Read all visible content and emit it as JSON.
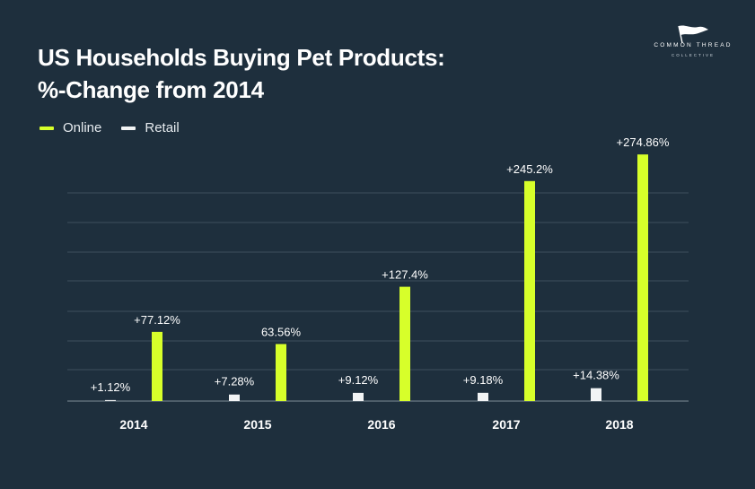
{
  "title_line1": "US Households Buying Pet Products:",
  "title_line2": "%-Change from 2014",
  "logo": {
    "line1": "COMMON THREAD",
    "line2": "COLLECTIVE",
    "icon": "flag-icon"
  },
  "colors": {
    "background": "#1e2f3d",
    "online": "#d7ff2a",
    "retail": "#f2f4f5",
    "grid": "#3d4f5d"
  },
  "legend": [
    {
      "label": "Online",
      "color": "#d7ff2a"
    },
    {
      "label": "Retail",
      "color": "#f2f4f5"
    }
  ],
  "chart_data": {
    "type": "bar",
    "categories": [
      "2014",
      "2015",
      "2016",
      "2017",
      "2018"
    ],
    "series": [
      {
        "name": "Online",
        "values": [
          77.12,
          63.56,
          127.4,
          245.2,
          274.86
        ],
        "labels": [
          "+77.12%",
          "63.56%",
          "+127.4%",
          "+245.2%",
          "+274.86%"
        ]
      },
      {
        "name": "Retail",
        "values": [
          1.12,
          7.28,
          9.12,
          9.18,
          14.38
        ],
        "labels": [
          "+1.12%",
          "+7.28%",
          "+9.12%",
          "+9.18%",
          "+14.38%"
        ]
      }
    ],
    "ylim": [
      0,
      300
    ],
    "grid": true,
    "legend_position": "top-left"
  }
}
